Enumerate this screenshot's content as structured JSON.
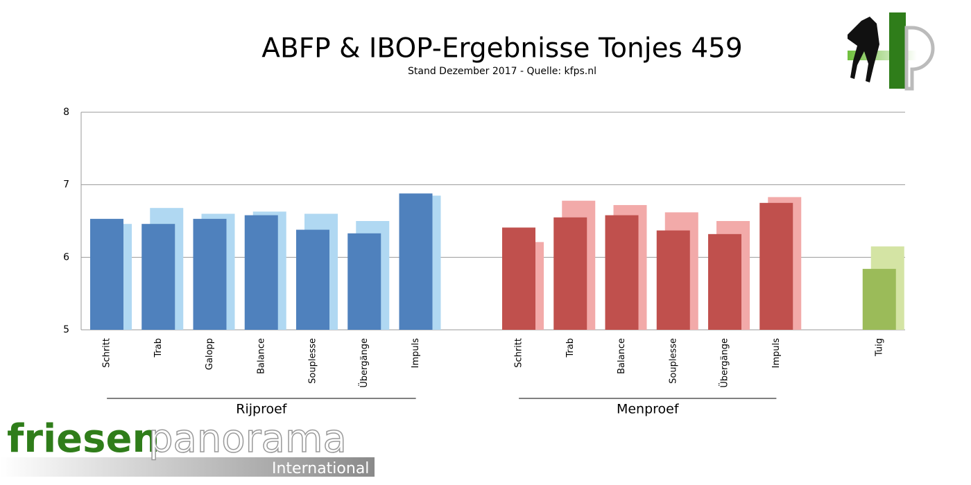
{
  "chart_data": {
    "type": "bar",
    "title": "ABFP & IBOP-Ergebnisse Tonjes 459",
    "subtitle": "Stand Dezember 2017 - Quelle: kfps.nl",
    "categories": [
      "Schritt",
      "Trab",
      "Galopp",
      "Balance",
      "Souplesse",
      "Übergänge",
      "Impuls",
      null,
      "Schritt",
      "Trab",
      "Balance",
      "Souplesse",
      "Übergänge",
      "Impuls",
      null,
      "Tuig"
    ],
    "groups": [
      "Rijproef",
      "Menproef"
    ],
    "series": [
      {
        "colors": [
          "#4f81bd",
          "#4f81bd",
          "#4f81bd",
          "#4f81bd",
          "#4f81bd",
          "#4f81bd",
          "#4f81bd",
          null,
          "#c0504d",
          "#c0504d",
          "#c0504d",
          "#c0504d",
          "#c0504d",
          "#c0504d",
          null,
          "#9bbb59"
        ],
        "values": [
          6.53,
          6.46,
          6.53,
          6.58,
          6.38,
          6.33,
          6.88,
          null,
          6.41,
          6.55,
          6.58,
          6.37,
          6.32,
          6.75,
          null,
          5.84
        ]
      },
      {
        "colors": [
          "#b0d8f2",
          "#b0d8f2",
          "#b0d8f2",
          "#b0d8f2",
          "#b0d8f2",
          "#b0d8f2",
          "#b0d8f2",
          null,
          "#f2aaa9",
          "#f2aaa9",
          "#f2aaa9",
          "#f2aaa9",
          "#f2aaa9",
          "#f2aaa9",
          null,
          "#d4e4a4"
        ],
        "values": [
          6.46,
          6.68,
          6.6,
          6.63,
          6.6,
          6.5,
          6.85,
          null,
          6.21,
          6.78,
          6.72,
          6.62,
          6.5,
          6.83,
          null,
          6.15
        ]
      }
    ],
    "ylim": [
      5,
      8
    ],
    "yticks": [
      5,
      6,
      7,
      8
    ],
    "grid": true
  },
  "logo": {
    "word1": "friesen",
    "word2": "panorama",
    "word3": "International"
  }
}
